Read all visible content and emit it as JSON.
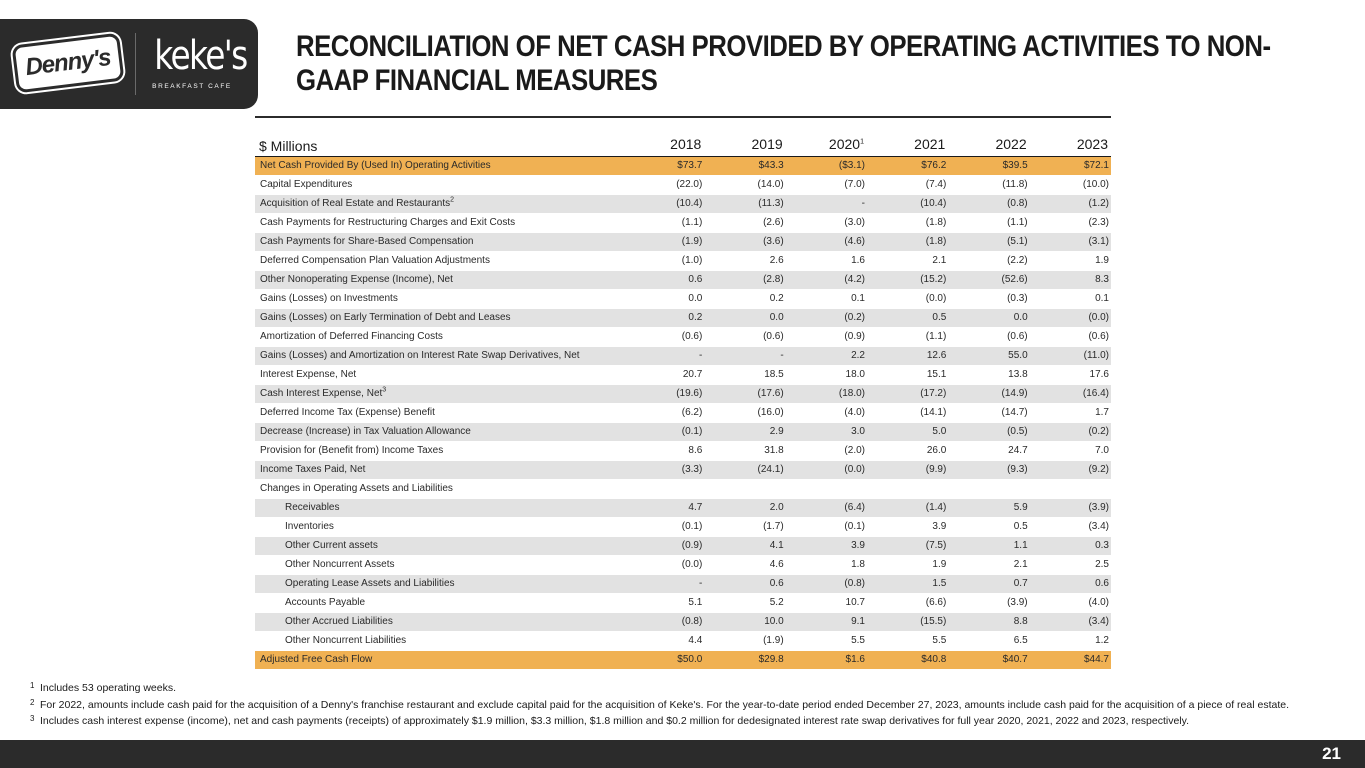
{
  "logos": {
    "dennys": "Denny's",
    "kekes_name": "keke's",
    "kekes_sub": "BREAKFAST CAFE"
  },
  "title": "RECONCILIATION OF NET CASH PROVIDED BY OPERATING ACTIVITIES TO NON-GAAP FINANCIAL MEASURES",
  "table": {
    "unit_label": "$ Millions",
    "years": [
      "2018",
      "2019",
      "2020",
      "2021",
      "2022",
      "2023"
    ],
    "year_footnote_2020": "1",
    "rows": [
      {
        "label": "Net Cash Provided By (Used In) Operating Activities",
        "sup": "",
        "values": [
          "$73.7",
          "$43.3",
          "($3.1)",
          "$76.2",
          "$39.5",
          "$72.1"
        ]
      },
      {
        "label": "Capital Expenditures",
        "sup": "",
        "values": [
          "(22.0)",
          "(14.0)",
          "(7.0)",
          "(7.4)",
          "(11.8)",
          "(10.0)"
        ]
      },
      {
        "label": "Acquisition of Real Estate and Restaurants",
        "sup": "2",
        "values": [
          "(10.4)",
          "(11.3)",
          "-",
          "(10.4)",
          "(0.8)",
          "(1.2)"
        ]
      },
      {
        "label": "Cash Payments for Restructuring Charges and Exit Costs",
        "sup": "",
        "values": [
          "(1.1)",
          "(2.6)",
          "(3.0)",
          "(1.8)",
          "(1.1)",
          "(2.3)"
        ]
      },
      {
        "label": "Cash Payments for Share-Based Compensation",
        "sup": "",
        "values": [
          "(1.9)",
          "(3.6)",
          "(4.6)",
          "(1.8)",
          "(5.1)",
          "(3.1)"
        ]
      },
      {
        "label": "Deferred Compensation Plan Valuation Adjustments",
        "sup": "",
        "values": [
          "(1.0)",
          "2.6",
          "1.6",
          "2.1",
          "(2.2)",
          "1.9"
        ]
      },
      {
        "label": "Other Nonoperating Expense (Income), Net",
        "sup": "",
        "values": [
          "0.6",
          "(2.8)",
          "(4.2)",
          "(15.2)",
          "(52.6)",
          "8.3"
        ]
      },
      {
        "label": "Gains (Losses) on Investments",
        "sup": "",
        "values": [
          "0.0",
          "0.2",
          "0.1",
          "(0.0)",
          "(0.3)",
          "0.1"
        ]
      },
      {
        "label": "Gains (Losses) on Early Termination of Debt and Leases",
        "sup": "",
        "values": [
          "0.2",
          "0.0",
          "(0.2)",
          "0.5",
          "0.0",
          "(0.0)"
        ]
      },
      {
        "label": "Amortization of Deferred Financing Costs",
        "sup": "",
        "values": [
          "(0.6)",
          "(0.6)",
          "(0.9)",
          "(1.1)",
          "(0.6)",
          "(0.6)"
        ]
      },
      {
        "label": "Gains (Losses) and Amortization on Interest Rate Swap Derivatives, Net",
        "sup": "",
        "values": [
          "-",
          "-",
          "2.2",
          "12.6",
          "55.0",
          "(11.0)"
        ]
      },
      {
        "label": "Interest Expense, Net",
        "sup": "",
        "values": [
          "20.7",
          "18.5",
          "18.0",
          "15.1",
          "13.8",
          "17.6"
        ]
      },
      {
        "label": "Cash Interest Expense, Net",
        "sup": "3",
        "values": [
          "(19.6)",
          "(17.6)",
          "(18.0)",
          "(17.2)",
          "(14.9)",
          "(16.4)"
        ]
      },
      {
        "label": "Deferred Income Tax (Expense) Benefit",
        "sup": "",
        "values": [
          "(6.2)",
          "(16.0)",
          "(4.0)",
          "(14.1)",
          "(14.7)",
          "1.7"
        ]
      },
      {
        "label": "Decrease (Increase) in Tax Valuation Allowance",
        "sup": "",
        "values": [
          "(0.1)",
          "2.9",
          "3.0",
          "5.0",
          "(0.5)",
          "(0.2)"
        ]
      },
      {
        "label": "Provision for (Benefit from) Income Taxes",
        "sup": "",
        "values": [
          "8.6",
          "31.8",
          "(2.0)",
          "26.0",
          "24.7",
          "7.0"
        ]
      },
      {
        "label": "Income Taxes Paid, Net",
        "sup": "",
        "values": [
          "(3.3)",
          "(24.1)",
          "(0.0)",
          "(9.9)",
          "(9.3)",
          "(9.2)"
        ]
      },
      {
        "label": "Changes in Operating Assets and Liabilities",
        "sup": "",
        "values": [
          "",
          "",
          "",
          "",
          "",
          ""
        ]
      },
      {
        "label": "Receivables",
        "sup": "",
        "values": [
          "4.7",
          "2.0",
          "(6.4)",
          "(1.4)",
          "5.9",
          "(3.9)"
        ]
      },
      {
        "label": "Inventories",
        "sup": "",
        "values": [
          "(0.1)",
          "(1.7)",
          "(0.1)",
          "3.9",
          "0.5",
          "(3.4)"
        ]
      },
      {
        "label": "Other Current assets",
        "sup": "",
        "values": [
          "(0.9)",
          "4.1",
          "3.9",
          "(7.5)",
          "1.1",
          "0.3"
        ]
      },
      {
        "label": "Other Noncurrent Assets",
        "sup": "",
        "values": [
          "(0.0)",
          "4.6",
          "1.8",
          "1.9",
          "2.1",
          "2.5"
        ]
      },
      {
        "label": "Operating Lease Assets and Liabilities",
        "sup": "",
        "values": [
          "-",
          "0.6",
          "(0.8)",
          "1.5",
          "0.7",
          "0.6"
        ]
      },
      {
        "label": "Accounts Payable",
        "sup": "",
        "values": [
          "5.1",
          "5.2",
          "10.7",
          "(6.6)",
          "(3.9)",
          "(4.0)"
        ]
      },
      {
        "label": "Other Accrued Liabilities",
        "sup": "",
        "values": [
          "(0.8)",
          "10.0",
          "9.1",
          "(15.5)",
          "8.8",
          "(3.4)"
        ]
      },
      {
        "label": "Other Noncurrent Liabilities",
        "sup": "",
        "values": [
          "4.4",
          "(1.9)",
          "5.5",
          "5.5",
          "6.5",
          "1.2"
        ]
      },
      {
        "label": "Adjusted Free Cash Flow",
        "sup": "",
        "values": [
          "$50.0",
          "$29.8",
          "$1.6",
          "$40.8",
          "$40.7",
          "$44.7"
        ]
      }
    ]
  },
  "footnotes": [
    {
      "mark": "1",
      "text": "Includes 53 operating weeks."
    },
    {
      "mark": "2",
      "text": "For 2022, amounts include cash paid for the acquisition of a Denny's franchise restaurant and exclude capital paid for the acquisition of Keke's. For the year-to-date period ended December 27, 2023, amounts include cash paid for the acquisition of a piece of real estate."
    },
    {
      "mark": "3",
      "text": "Includes cash interest expense (income), net and cash payments (receipts) of approximately $1.9 million, $3.3 million, $1.8 million and $0.2 million for dedesignated interest rate swap derivatives for full year 2020, 2021, 2022 and 2023, respectively."
    }
  ],
  "page_number": "21"
}
